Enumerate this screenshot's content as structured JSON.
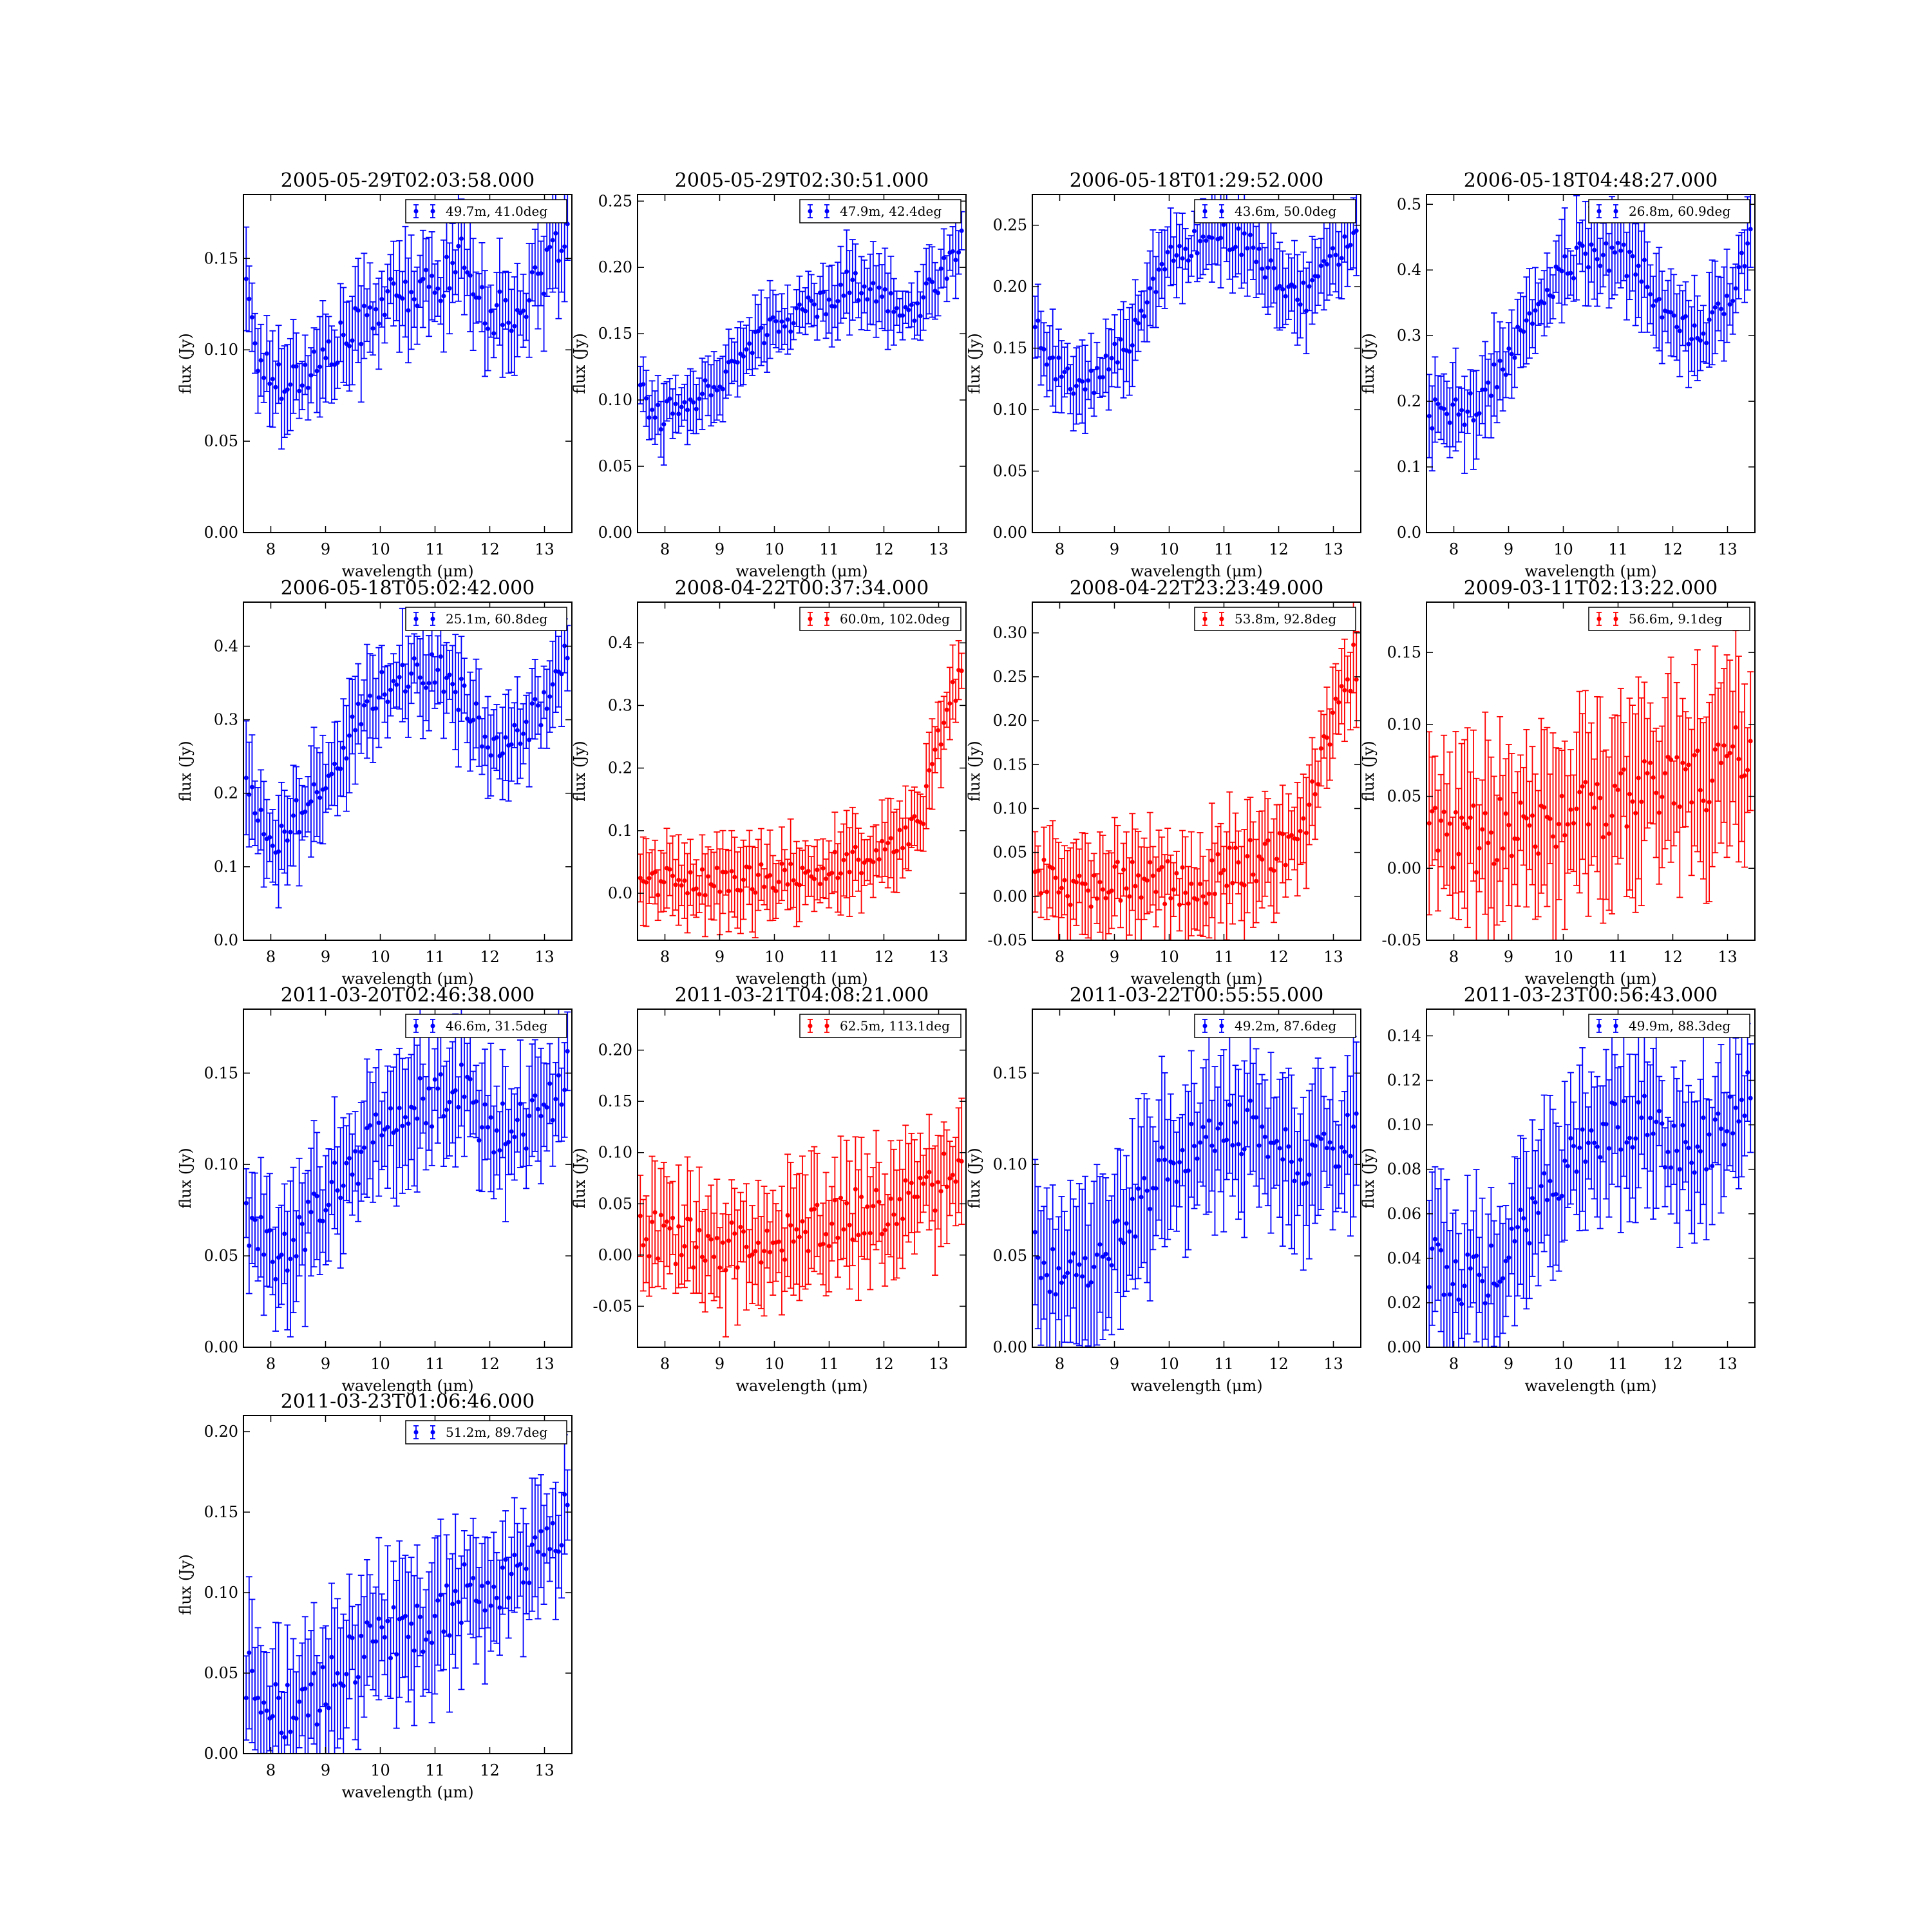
{
  "figure": {
    "background": "#ffffff",
    "colors": {
      "blue": "#0000ff",
      "red": "#ff0000"
    }
  },
  "chart_data": [
    {
      "type": "scatter",
      "title": "2005-05-29T02:03:58.000",
      "xlabel": "wavelength (μm)",
      "ylabel": "flux (Jy)",
      "xlim": [
        7.5,
        13.5
      ],
      "ylim": [
        0.0,
        0.185
      ],
      "xticks": [
        "8",
        "9",
        "10",
        "11",
        "12",
        "13"
      ],
      "yticks": [
        "0.00",
        "0.05",
        "0.10",
        "0.15"
      ],
      "legend": "49.7m, 41.0deg",
      "legend_position": "top-right",
      "color": "#0000ff",
      "error_bars": true,
      "profile": [
        [
          7.55,
          0.145
        ],
        [
          7.7,
          0.1
        ],
        [
          8.0,
          0.085
        ],
        [
          8.5,
          0.085
        ],
        [
          9.0,
          0.095
        ],
        [
          9.5,
          0.11
        ],
        [
          10.0,
          0.125
        ],
        [
          10.5,
          0.13
        ],
        [
          11.0,
          0.135
        ],
        [
          11.5,
          0.15
        ],
        [
          12.0,
          0.12
        ],
        [
          12.5,
          0.12
        ],
        [
          13.0,
          0.14
        ],
        [
          13.4,
          0.17
        ]
      ],
      "noise": 0.012,
      "err": 0.022
    },
    {
      "type": "scatter",
      "title": "2005-05-29T02:30:51.000",
      "xlabel": "wavelength (μm)",
      "ylabel": "flux (Jy)",
      "xlim": [
        7.5,
        13.5
      ],
      "ylim": [
        0.0,
        0.255
      ],
      "xticks": [
        "8",
        "9",
        "10",
        "11",
        "12",
        "13"
      ],
      "yticks": [
        "0.00",
        "0.05",
        "0.10",
        "0.15",
        "0.20",
        "0.25"
      ],
      "legend": "47.9m, 42.4deg",
      "legend_position": "top-right",
      "color": "#0000ff",
      "error_bars": true,
      "profile": [
        [
          7.55,
          0.115
        ],
        [
          7.8,
          0.085
        ],
        [
          8.5,
          0.1
        ],
        [
          9.0,
          0.115
        ],
        [
          9.5,
          0.14
        ],
        [
          10.0,
          0.155
        ],
        [
          10.5,
          0.165
        ],
        [
          11.0,
          0.175
        ],
        [
          11.3,
          0.19
        ],
        [
          12.0,
          0.175
        ],
        [
          12.5,
          0.165
        ],
        [
          13.0,
          0.19
        ],
        [
          13.4,
          0.22
        ]
      ],
      "noise": 0.01,
      "err": 0.022
    },
    {
      "type": "scatter",
      "title": "2006-05-18T01:29:52.000",
      "xlabel": "wavelength (μm)",
      "ylabel": "flux (Jy)",
      "xlim": [
        7.5,
        13.5
      ],
      "ylim": [
        0.0,
        0.275
      ],
      "xticks": [
        "8",
        "9",
        "10",
        "11",
        "12",
        "13"
      ],
      "yticks": [
        "0.00",
        "0.05",
        "0.10",
        "0.15",
        "0.20",
        "0.25"
      ],
      "legend": "43.6m, 50.0deg",
      "legend_position": "top-right",
      "color": "#0000ff",
      "error_bars": true,
      "profile": [
        [
          7.55,
          0.17
        ],
        [
          7.8,
          0.14
        ],
        [
          8.3,
          0.115
        ],
        [
          8.8,
          0.13
        ],
        [
          9.3,
          0.16
        ],
        [
          9.7,
          0.2
        ],
        [
          10.0,
          0.225
        ],
        [
          10.5,
          0.235
        ],
        [
          11.0,
          0.245
        ],
        [
          11.5,
          0.23
        ],
        [
          12.0,
          0.205
        ],
        [
          12.5,
          0.19
        ],
        [
          13.0,
          0.22
        ],
        [
          13.4,
          0.25
        ]
      ],
      "noise": 0.012,
      "err": 0.028
    },
    {
      "type": "scatter",
      "title": "2006-05-18T04:48:27.000",
      "xlabel": "wavelength (μm)",
      "ylabel": "flux (Jy)",
      "xlim": [
        7.5,
        13.5
      ],
      "ylim": [
        0.0,
        0.515
      ],
      "xticks": [
        "8",
        "9",
        "10",
        "11",
        "12",
        "13"
      ],
      "yticks": [
        "0.0",
        "0.1",
        "0.2",
        "0.3",
        "0.4",
        "0.5"
      ],
      "legend": "26.8m, 60.9deg",
      "legend_position": "top-right",
      "color": "#0000ff",
      "error_bars": true,
      "profile": [
        [
          7.55,
          0.18
        ],
        [
          8.0,
          0.18
        ],
        [
          8.5,
          0.2
        ],
        [
          9.0,
          0.27
        ],
        [
          9.5,
          0.33
        ],
        [
          10.0,
          0.4
        ],
        [
          10.5,
          0.43
        ],
        [
          11.0,
          0.42
        ],
        [
          11.5,
          0.39
        ],
        [
          12.0,
          0.32
        ],
        [
          12.5,
          0.3
        ],
        [
          13.0,
          0.34
        ],
        [
          13.4,
          0.45
        ]
      ],
      "noise": 0.025,
      "err": 0.055
    },
    {
      "type": "scatter",
      "title": "2006-05-18T05:02:42.000",
      "xlabel": "wavelength (μm)",
      "ylabel": "flux (Jy)",
      "xlim": [
        7.5,
        13.5
      ],
      "ylim": [
        0.0,
        0.46
      ],
      "xticks": [
        "8",
        "9",
        "10",
        "11",
        "12",
        "13"
      ],
      "yticks": [
        "0.0",
        "0.1",
        "0.2",
        "0.3",
        "0.4"
      ],
      "legend": "25.1m, 60.8deg",
      "legend_position": "top-right",
      "color": "#0000ff",
      "error_bars": true,
      "profile": [
        [
          7.55,
          0.22
        ],
        [
          8.0,
          0.13
        ],
        [
          8.5,
          0.17
        ],
        [
          9.0,
          0.21
        ],
        [
          9.5,
          0.29
        ],
        [
          10.0,
          0.34
        ],
        [
          10.5,
          0.36
        ],
        [
          11.0,
          0.37
        ],
        [
          11.5,
          0.33
        ],
        [
          12.0,
          0.27
        ],
        [
          12.5,
          0.28
        ],
        [
          13.0,
          0.32
        ],
        [
          13.4,
          0.4
        ]
      ],
      "noise": 0.025,
      "err": 0.055
    },
    {
      "type": "scatter",
      "title": "2008-04-22T00:37:34.000",
      "xlabel": "wavelength (μm)",
      "ylabel": "flux (Jy)",
      "xlim": [
        7.5,
        13.5
      ],
      "ylim": [
        -0.075,
        0.465
      ],
      "xticks": [
        "8",
        "9",
        "10",
        "11",
        "12",
        "13"
      ],
      "yticks": [
        "0.0",
        "0.1",
        "0.2",
        "0.3",
        "0.4"
      ],
      "legend": "60.0m, 102.0deg",
      "legend_position": "top-right",
      "color": "#ff0000",
      "error_bars": true,
      "profile": [
        [
          7.55,
          0.02
        ],
        [
          8.5,
          0.02
        ],
        [
          9.5,
          0.02
        ],
        [
          10.5,
          0.03
        ],
        [
          11.5,
          0.05
        ],
        [
          12.3,
          0.08
        ],
        [
          12.7,
          0.12
        ],
        [
          13.0,
          0.25
        ],
        [
          13.4,
          0.35
        ]
      ],
      "noise": 0.025,
      "err": 0.05
    },
    {
      "type": "scatter",
      "title": "2008-04-22T23:23:49.000",
      "xlabel": "wavelength (μm)",
      "ylabel": "flux (Jy)",
      "xlim": [
        7.5,
        13.5
      ],
      "ylim": [
        -0.05,
        0.335
      ],
      "xticks": [
        "8",
        "9",
        "10",
        "11",
        "12",
        "13"
      ],
      "yticks": [
        "-0.05",
        "0.00",
        "0.05",
        "0.10",
        "0.15",
        "0.20",
        "0.25",
        "0.30"
      ],
      "legend": "53.8m, 92.8deg",
      "legend_position": "top-right",
      "color": "#ff0000",
      "error_bars": true,
      "profile": [
        [
          7.55,
          0.02
        ],
        [
          8.5,
          0.01
        ],
        [
          9.5,
          0.02
        ],
        [
          10.5,
          0.01
        ],
        [
          11.0,
          0.03
        ],
        [
          11.5,
          0.04
        ],
        [
          12.0,
          0.05
        ],
        [
          12.5,
          0.09
        ],
        [
          13.0,
          0.2
        ],
        [
          13.4,
          0.27
        ]
      ],
      "noise": 0.025,
      "err": 0.045
    },
    {
      "type": "scatter",
      "title": "2009-03-11T02:13:22.000",
      "xlabel": "wavelength (μm)",
      "ylabel": "flux (Jy)",
      "xlim": [
        7.5,
        13.5
      ],
      "ylim": [
        -0.05,
        0.185
      ],
      "xticks": [
        "8",
        "9",
        "10",
        "11",
        "12",
        "13"
      ],
      "yticks": [
        "-0.05",
        "0.00",
        "0.05",
        "0.10",
        "0.15"
      ],
      "legend": "56.6m, 9.1deg",
      "legend_position": "top-right",
      "color": "#ff0000",
      "error_bars": true,
      "profile": [
        [
          7.55,
          0.02
        ],
        [
          8.5,
          0.02
        ],
        [
          9.5,
          0.03
        ],
        [
          10.5,
          0.04
        ],
        [
          11.5,
          0.05
        ],
        [
          12.5,
          0.06
        ],
        [
          13.0,
          0.07
        ],
        [
          13.4,
          0.09
        ]
      ],
      "noise": 0.025,
      "err": 0.05
    },
    {
      "type": "scatter",
      "title": "2011-03-20T02:46:38.000",
      "xlabel": "wavelength (μm)",
      "ylabel": "flux (Jy)",
      "xlim": [
        7.5,
        13.5
      ],
      "ylim": [
        0.0,
        0.185
      ],
      "xticks": [
        "8",
        "9",
        "10",
        "11",
        "12",
        "13"
      ],
      "yticks": [
        "0.00",
        "0.05",
        "0.10",
        "0.15"
      ],
      "legend": "46.6m, 31.5deg",
      "legend_position": "top-right",
      "color": "#0000ff",
      "error_bars": true,
      "profile": [
        [
          7.55,
          0.07
        ],
        [
          8.0,
          0.05
        ],
        [
          8.5,
          0.06
        ],
        [
          9.0,
          0.08
        ],
        [
          9.5,
          0.1
        ],
        [
          10.0,
          0.12
        ],
        [
          10.5,
          0.13
        ],
        [
          11.0,
          0.135
        ],
        [
          11.5,
          0.14
        ],
        [
          12.0,
          0.12
        ],
        [
          12.5,
          0.12
        ],
        [
          13.0,
          0.13
        ],
        [
          13.4,
          0.15
        ]
      ],
      "noise": 0.015,
      "err": 0.03
    },
    {
      "type": "scatter",
      "title": "2011-03-21T04:08:21.000",
      "xlabel": "wavelength (μm)",
      "ylabel": "flux (Jy)",
      "xlim": [
        7.5,
        13.5
      ],
      "ylim": [
        -0.09,
        0.24
      ],
      "xticks": [
        "8",
        "9",
        "10",
        "11",
        "12",
        "13"
      ],
      "yticks": [
        "-0.05",
        "0.00",
        "0.05",
        "0.10",
        "0.15",
        "0.20"
      ],
      "legend": "62.5m, 113.1deg",
      "legend_position": "top-right",
      "color": "#ff0000",
      "error_bars": true,
      "profile": [
        [
          7.55,
          0.02
        ],
        [
          8.5,
          0.01
        ],
        [
          9.5,
          0.01
        ],
        [
          10.5,
          0.02
        ],
        [
          11.5,
          0.04
        ],
        [
          12.5,
          0.05
        ],
        [
          13.0,
          0.07
        ],
        [
          13.4,
          0.1
        ]
      ],
      "noise": 0.025,
      "err": 0.045
    },
    {
      "type": "scatter",
      "title": "2011-03-22T00:55:55.000",
      "xlabel": "wavelength (μm)",
      "ylabel": "flux (Jy)",
      "xlim": [
        7.5,
        13.5
      ],
      "ylim": [
        0.0,
        0.185
      ],
      "xticks": [
        "8",
        "9",
        "10",
        "11",
        "12",
        "13"
      ],
      "yticks": [
        "0.00",
        "0.05",
        "0.10",
        "0.15"
      ],
      "legend": "49.2m, 87.6deg",
      "legend_position": "top-right",
      "color": "#0000ff",
      "error_bars": true,
      "profile": [
        [
          7.55,
          0.05
        ],
        [
          8.0,
          0.04
        ],
        [
          8.5,
          0.04
        ],
        [
          9.0,
          0.06
        ],
        [
          9.5,
          0.08
        ],
        [
          10.0,
          0.1
        ],
        [
          10.5,
          0.11
        ],
        [
          11.0,
          0.12
        ],
        [
          11.5,
          0.12
        ],
        [
          12.0,
          0.11
        ],
        [
          12.5,
          0.1
        ],
        [
          13.0,
          0.11
        ],
        [
          13.4,
          0.12
        ]
      ],
      "noise": 0.015,
      "err": 0.035
    },
    {
      "type": "scatter",
      "title": "2011-03-23T00:56:43.000",
      "xlabel": "wavelength (μm)",
      "ylabel": "flux (Jy)",
      "xlim": [
        7.5,
        13.5
      ],
      "ylim": [
        0.0,
        0.152
      ],
      "xticks": [
        "8",
        "9",
        "10",
        "11",
        "12",
        "13"
      ],
      "yticks": [
        "0.00",
        "0.02",
        "0.04",
        "0.06",
        "0.08",
        "0.10",
        "0.12",
        "0.14"
      ],
      "legend": "49.9m, 88.3deg",
      "legend_position": "top-right",
      "color": "#0000ff",
      "error_bars": true,
      "profile": [
        [
          7.55,
          0.04
        ],
        [
          8.0,
          0.03
        ],
        [
          8.5,
          0.03
        ],
        [
          9.0,
          0.04
        ],
        [
          9.5,
          0.06
        ],
        [
          10.0,
          0.08
        ],
        [
          10.5,
          0.09
        ],
        [
          11.0,
          0.1
        ],
        [
          11.5,
          0.1
        ],
        [
          12.0,
          0.09
        ],
        [
          12.5,
          0.09
        ],
        [
          13.0,
          0.1
        ],
        [
          13.4,
          0.12
        ]
      ],
      "noise": 0.013,
      "err": 0.028
    },
    {
      "type": "scatter",
      "title": "2011-03-23T01:06:46.000",
      "xlabel": "wavelength (μm)",
      "ylabel": "flux (Jy)",
      "xlim": [
        7.5,
        13.5
      ],
      "ylim": [
        0.0,
        0.21
      ],
      "xticks": [
        "8",
        "9",
        "10",
        "11",
        "12",
        "13"
      ],
      "yticks": [
        "0.00",
        "0.05",
        "0.10",
        "0.15",
        "0.20"
      ],
      "legend": "51.2m, 89.7deg",
      "legend_position": "top-right",
      "color": "#0000ff",
      "error_bars": true,
      "profile": [
        [
          7.55,
          0.05
        ],
        [
          8.0,
          0.03
        ],
        [
          8.5,
          0.025
        ],
        [
          9.0,
          0.04
        ],
        [
          9.5,
          0.06
        ],
        [
          10.0,
          0.07
        ],
        [
          10.5,
          0.08
        ],
        [
          11.0,
          0.08
        ],
        [
          11.5,
          0.1
        ],
        [
          12.0,
          0.1
        ],
        [
          12.5,
          0.11
        ],
        [
          13.0,
          0.13
        ],
        [
          13.4,
          0.15
        ]
      ],
      "noise": 0.018,
      "err": 0.035
    }
  ]
}
